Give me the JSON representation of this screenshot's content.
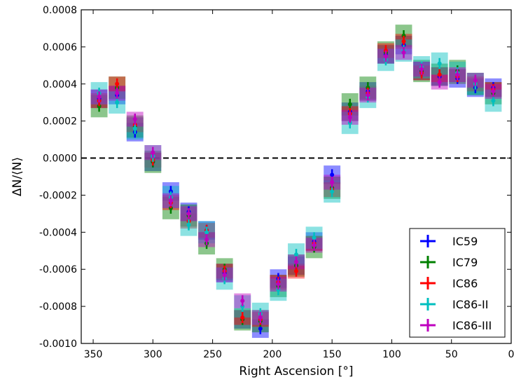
{
  "chart_data": {
    "type": "scatter",
    "xlabel": "Right Ascension [°]",
    "ylabel": "ΔN/⟨N⟩",
    "xlim": [
      360,
      0
    ],
    "ylim": [
      -0.001,
      0.0008
    ],
    "x_reversed": true,
    "x_ticks": [
      "350",
      "300",
      "250",
      "200",
      "150",
      "100",
      "50",
      "0"
    ],
    "y_ticks": [
      "0.0008",
      "0.0006",
      "0.0004",
      "0.0002",
      "0.0000",
      "-0.0002",
      "-0.0004",
      "-0.0006",
      "-0.0008",
      "-0.0010"
    ],
    "reference_line": {
      "y": 0,
      "style": "dashed",
      "color": "#000000"
    },
    "legend_position": "bottom-right",
    "x": [
      345,
      330,
      315,
      300,
      285,
      270,
      255,
      240,
      225,
      210,
      195,
      180,
      165,
      150,
      135,
      120,
      105,
      90,
      75,
      60,
      45,
      30,
      15
    ],
    "series": [
      {
        "name": "IC59",
        "color": "#0000ff",
        "y": [
          0.00032,
          0.00034,
          0.00014,
          -2e-05,
          -0.00018,
          -0.00029,
          -0.00039,
          -0.00062,
          -0.00087,
          -0.00092,
          -0.00065,
          -0.00058,
          -0.00045,
          -9e-05,
          0.00025,
          0.00036,
          0.00056,
          0.00061,
          0.00047,
          0.00044,
          0.00043,
          0.00038,
          0.00038
        ],
        "err": [
          3e-05,
          3e-05,
          3e-05,
          3e-05,
          3e-05,
          3e-05,
          3e-05,
          3e-05,
          3e-05,
          3e-05,
          3e-05,
          3e-05,
          3e-05,
          3e-05,
          3e-05,
          3e-05,
          3e-05,
          3e-05,
          3e-05,
          3e-05,
          3e-05,
          3e-05,
          3e-05
        ],
        "sys": [
          5e-05,
          5e-05,
          5e-05,
          5e-05,
          5e-05,
          5e-05,
          5e-05,
          5e-05,
          5e-05,
          5e-05,
          5e-05,
          5e-05,
          5e-05,
          5e-05,
          5e-05,
          5e-05,
          5e-05,
          5e-05,
          5e-05,
          5e-05,
          5e-05,
          5e-05,
          5e-05
        ]
      },
      {
        "name": "IC79",
        "color": "#008000",
        "y": [
          0.00028,
          0.00038,
          0.00017,
          -2e-05,
          -0.00027,
          -0.00031,
          -0.00046,
          -0.0006,
          -0.00087,
          -0.00088,
          -0.00069,
          -0.00058,
          -0.00048,
          -0.00016,
          0.00029,
          0.00038,
          0.00057,
          0.00066,
          0.00047,
          0.00045,
          0.00047,
          0.0004,
          0.00035
        ],
        "err": [
          3e-05,
          3e-05,
          3e-05,
          3e-05,
          3e-05,
          3e-05,
          3e-05,
          3e-05,
          3e-05,
          3e-05,
          3e-05,
          3e-05,
          3e-05,
          3e-05,
          3e-05,
          3e-05,
          3e-05,
          3e-05,
          3e-05,
          3e-05,
          3e-05,
          3e-05,
          3e-05
        ],
        "sys": [
          6e-05,
          6e-05,
          6e-05,
          6e-05,
          6e-05,
          6e-05,
          6e-05,
          6e-05,
          6e-05,
          6e-05,
          6e-05,
          6e-05,
          6e-05,
          6e-05,
          6e-05,
          6e-05,
          6e-05,
          6e-05,
          6e-05,
          6e-05,
          6e-05,
          6e-05,
          6e-05
        ]
      },
      {
        "name": "IC86",
        "color": "#ff0000",
        "y": [
          0.00031,
          0.0004,
          0.00018,
          -1e-05,
          -0.00024,
          -0.00034,
          -0.00039,
          -0.00061,
          -0.00086,
          -0.00087,
          -0.00067,
          -0.00061,
          -0.00046,
          -0.00017,
          0.00024,
          0.00035,
          0.00058,
          0.00063,
          0.00046,
          0.00045,
          0.00044,
          0.0004,
          0.00037
        ],
        "err": [
          3e-05,
          3e-05,
          3e-05,
          3e-05,
          3e-05,
          3e-05,
          3e-05,
          3e-05,
          3e-05,
          3e-05,
          3e-05,
          3e-05,
          3e-05,
          3e-05,
          3e-05,
          3e-05,
          3e-05,
          3e-05,
          3e-05,
          3e-05,
          3e-05,
          3e-05,
          3e-05
        ],
        "sys": [
          4e-05,
          4e-05,
          4e-05,
          4e-05,
          4e-05,
          4e-05,
          4e-05,
          4e-05,
          4e-05,
          4e-05,
          4e-05,
          4e-05,
          4e-05,
          4e-05,
          4e-05,
          4e-05,
          4e-05,
          4e-05,
          4e-05,
          4e-05,
          4e-05,
          4e-05,
          4e-05
        ]
      },
      {
        "name": "IC86-II",
        "color": "#00bfbf",
        "y": [
          0.00035,
          0.0003,
          0.00016,
          1e-05,
          -0.00021,
          -0.00036,
          -0.0004,
          -0.00065,
          -0.0008,
          -0.00084,
          -0.00071,
          -0.00052,
          -0.00043,
          -0.00018,
          0.00019,
          0.00033,
          0.00053,
          0.00058,
          0.00049,
          0.00051,
          0.00046,
          0.0004,
          0.00031
        ],
        "err": [
          3e-05,
          3e-05,
          3e-05,
          3e-05,
          3e-05,
          3e-05,
          3e-05,
          3e-05,
          3e-05,
          3e-05,
          3e-05,
          3e-05,
          3e-05,
          3e-05,
          3e-05,
          3e-05,
          3e-05,
          3e-05,
          3e-05,
          3e-05,
          3e-05,
          3e-05,
          3e-05
        ],
        "sys": [
          6e-05,
          6e-05,
          6e-05,
          6e-05,
          6e-05,
          6e-05,
          6e-05,
          6e-05,
          6e-05,
          6e-05,
          6e-05,
          6e-05,
          6e-05,
          6e-05,
          6e-05,
          6e-05,
          6e-05,
          6e-05,
          6e-05,
          6e-05,
          6e-05,
          6e-05,
          6e-05
        ]
      },
      {
        "name": "IC86-III",
        "color": "#bf00bf",
        "y": [
          0.00033,
          0.00035,
          0.00021,
          3e-05,
          -0.00023,
          -0.0003,
          -0.00044,
          -0.00063,
          -0.00077,
          -0.00086,
          -0.00068,
          -0.00056,
          -0.00047,
          -0.00013,
          0.00022,
          0.00034,
          0.00055,
          0.00057,
          0.00048,
          0.00041,
          0.00045,
          0.00042,
          0.00036
        ],
        "err": [
          3e-05,
          3e-05,
          3e-05,
          3e-05,
          3e-05,
          3e-05,
          3e-05,
          3e-05,
          3e-05,
          3e-05,
          3e-05,
          3e-05,
          3e-05,
          3e-05,
          3e-05,
          3e-05,
          3e-05,
          3e-05,
          3e-05,
          3e-05,
          3e-05,
          3e-05,
          3e-05
        ],
        "sys": [
          4e-05,
          4e-05,
          4e-05,
          4e-05,
          4e-05,
          4e-05,
          4e-05,
          4e-05,
          4e-05,
          4e-05,
          4e-05,
          4e-05,
          4e-05,
          4e-05,
          4e-05,
          4e-05,
          4e-05,
          4e-05,
          4e-05,
          4e-05,
          4e-05,
          4e-05,
          4e-05
        ]
      }
    ]
  }
}
